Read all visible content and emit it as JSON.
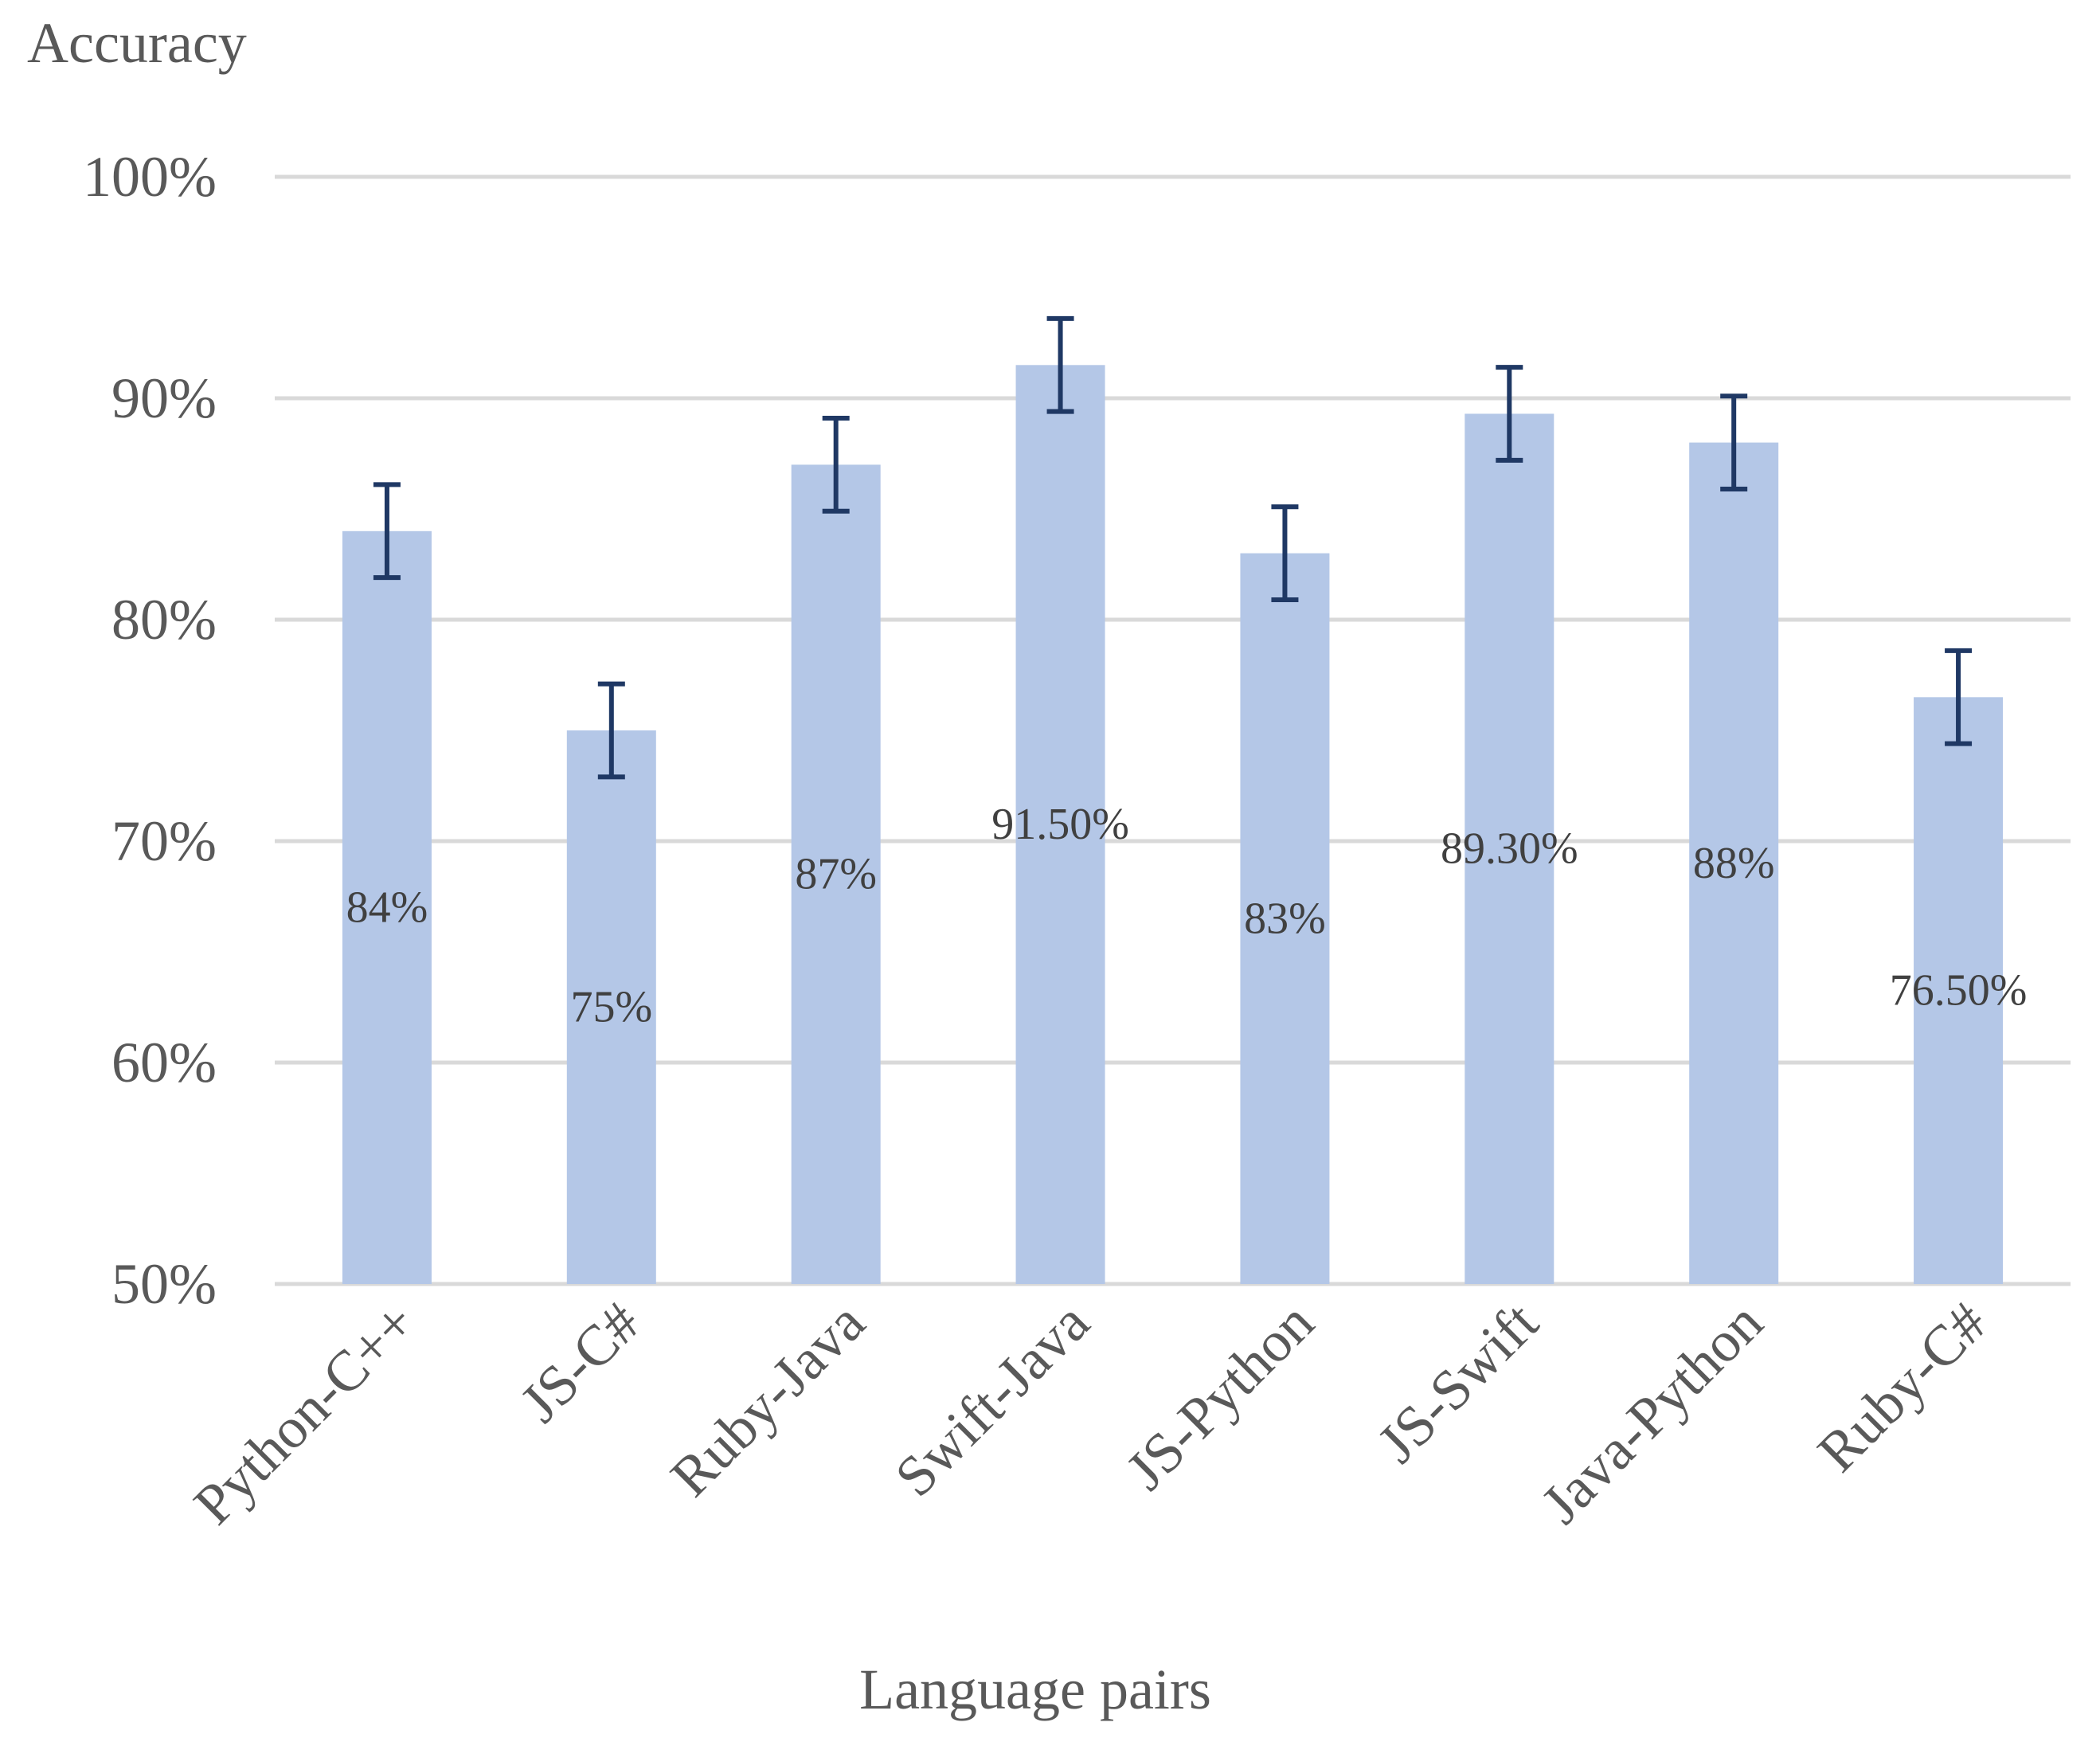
{
  "chart_data": {
    "type": "bar",
    "title": "",
    "xlabel": "Language pairs",
    "ylabel": "Accuracy",
    "categories": [
      "Python-C++",
      "JS-C#",
      "Ruby-Java",
      "Swift-Java",
      "JS-Python",
      "JS-Swift",
      "Java-Python",
      "Ruby-C#"
    ],
    "values": [
      84,
      75,
      87,
      91.5,
      83,
      89.3,
      88,
      76.5
    ],
    "data_labels": [
      "84%",
      "75%",
      "87%",
      "91.50%",
      "83%",
      "89.30%",
      "88%",
      "76.50%"
    ],
    "error": [
      2.1,
      2.1,
      2.1,
      2.1,
      2.1,
      2.1,
      2.1,
      2.1
    ],
    "ylim": [
      50,
      100
    ],
    "yticks": [
      50,
      60,
      70,
      80,
      90,
      100
    ],
    "ytick_labels": [
      "50%",
      "60%",
      "70%",
      "80%",
      "90%",
      "100%"
    ],
    "grid": true,
    "legend": "none",
    "colors": {
      "bar": "#b4c7e7",
      "error_bar": "#1f3864",
      "grid": "#d9d9d9",
      "text": "#595959"
    }
  }
}
